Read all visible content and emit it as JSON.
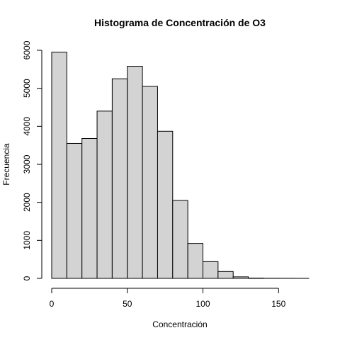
{
  "chart_data": {
    "type": "bar",
    "title": "Histograma de Concentración de O3",
    "xlabel": "Concentración",
    "ylabel": "Frecuencia",
    "bins": [
      {
        "start": 0,
        "end": 10,
        "count": 5950
      },
      {
        "start": 10,
        "end": 20,
        "count": 3550
      },
      {
        "start": 20,
        "end": 30,
        "count": 3680
      },
      {
        "start": 30,
        "end": 40,
        "count": 4400
      },
      {
        "start": 40,
        "end": 50,
        "count": 5250
      },
      {
        "start": 50,
        "end": 60,
        "count": 5580
      },
      {
        "start": 60,
        "end": 70,
        "count": 5050
      },
      {
        "start": 70,
        "end": 80,
        "count": 3870
      },
      {
        "start": 80,
        "end": 90,
        "count": 2050
      },
      {
        "start": 90,
        "end": 100,
        "count": 920
      },
      {
        "start": 100,
        "end": 110,
        "count": 440
      },
      {
        "start": 110,
        "end": 120,
        "count": 180
      },
      {
        "start": 120,
        "end": 130,
        "count": 40
      },
      {
        "start": 130,
        "end": 140,
        "count": 8
      },
      {
        "start": 140,
        "end": 150,
        "count": 3
      },
      {
        "start": 150,
        "end": 160,
        "count": 2
      },
      {
        "start": 160,
        "end": 170,
        "count": 1
      }
    ],
    "x_ticks": [
      "0",
      "50",
      "100",
      "150"
    ],
    "y_ticks": [
      "0",
      "1000",
      "2000",
      "3000",
      "4000",
      "5000",
      "6000"
    ],
    "xlim": [
      0,
      170
    ],
    "ylim": [
      0,
      6000
    ],
    "grid": false,
    "bar_color": "#d3d3d3"
  }
}
